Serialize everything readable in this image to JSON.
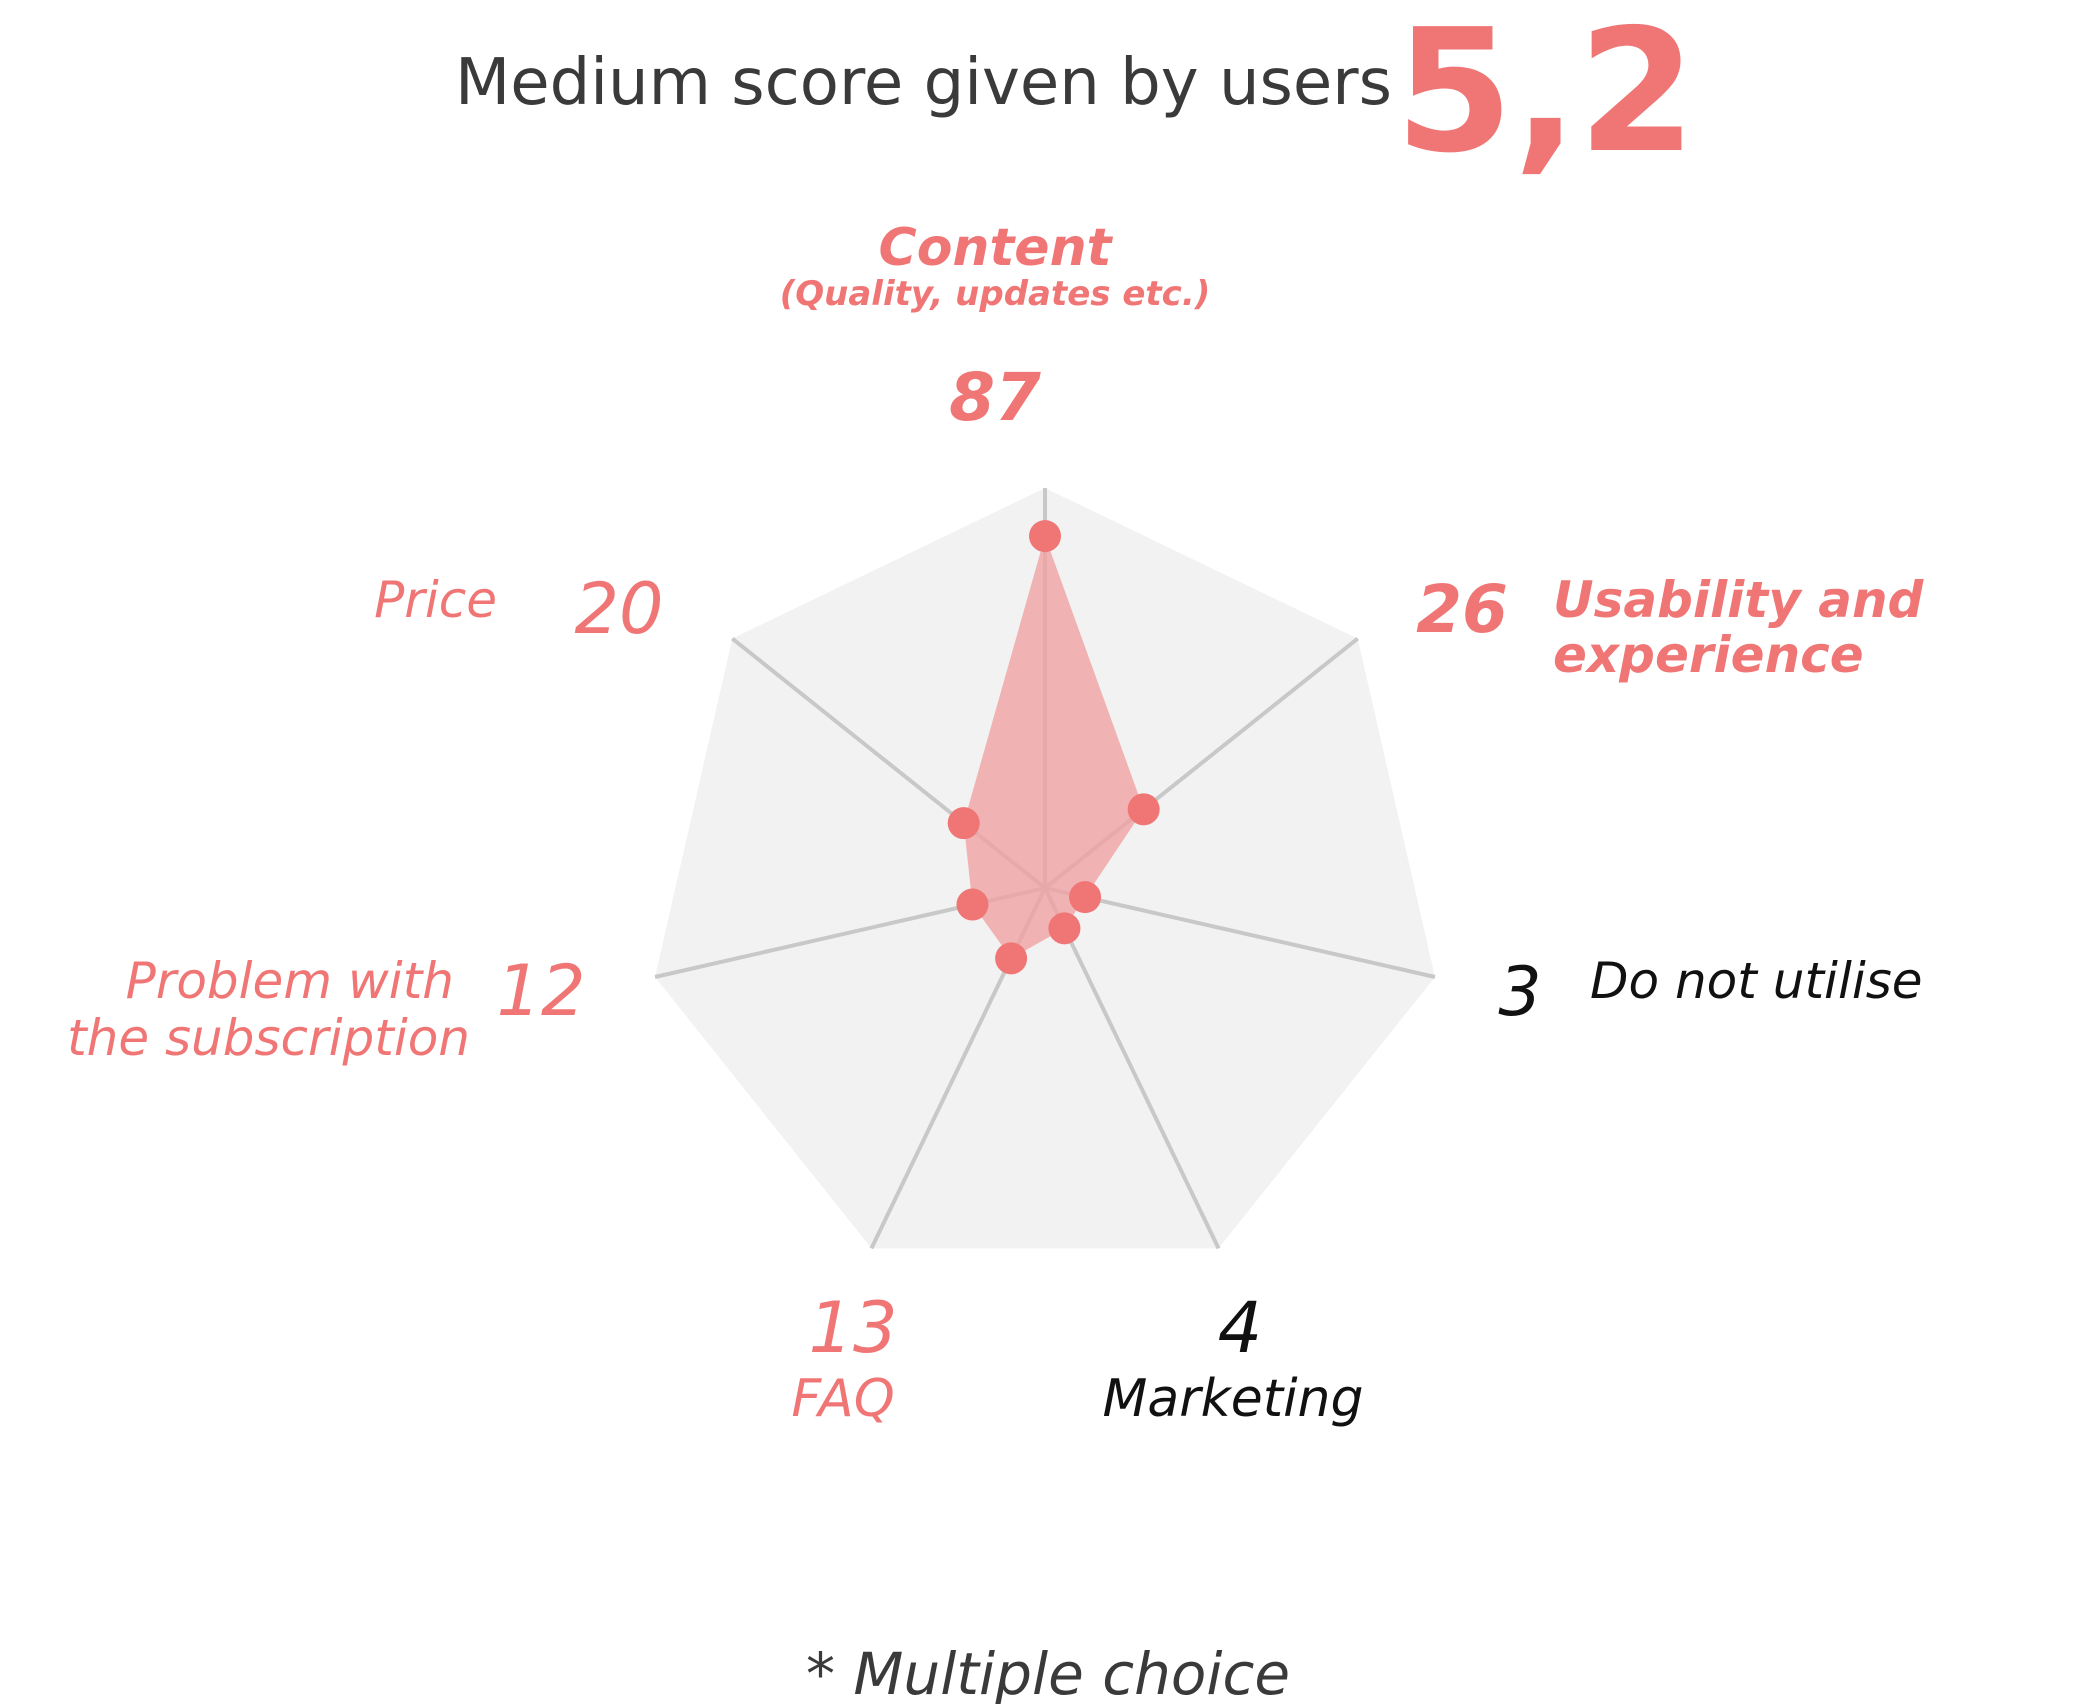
{
  "header": {
    "label": "Medium score given by users",
    "score": "5,2"
  },
  "footnote": "* Multiple choice",
  "colors": {
    "accent": "#f07676",
    "fill": "#f0a0a0",
    "grid_fill": "#f2f2f2",
    "spoke": "#c8c8c8",
    "dark_text": "#111111",
    "header_text": "#3a3a3a"
  },
  "chart_data": {
    "type": "radar",
    "title": "Medium score given by users",
    "note": "* Multiple choice",
    "axes": [
      {
        "label": "Content",
        "sublabel": "(Quality, updates etc.)",
        "value": 87,
        "value_text": "87",
        "highlight": true
      },
      {
        "label": "Usability and experience",
        "label_lines": [
          "Usability and",
          "experience"
        ],
        "value": 26,
        "value_text": "26",
        "highlight": true
      },
      {
        "label": "Do not utilise",
        "value": 3,
        "value_text": "3",
        "highlight": false
      },
      {
        "label": "Marketing",
        "value": 4,
        "value_text": "4",
        "highlight": false
      },
      {
        "label": "FAQ",
        "value": 13,
        "value_text": "13",
        "highlight": false,
        "accent": true
      },
      {
        "label": "Problem with the subscription",
        "label_lines": [
          "Problem with",
          "the subscription"
        ],
        "value": 12,
        "value_text": "12",
        "highlight": false,
        "accent": true
      },
      {
        "label": "Price",
        "value": 20,
        "value_text": "20",
        "highlight": false,
        "accent": true
      }
    ],
    "range": [
      0,
      100
    ],
    "grid": true
  }
}
